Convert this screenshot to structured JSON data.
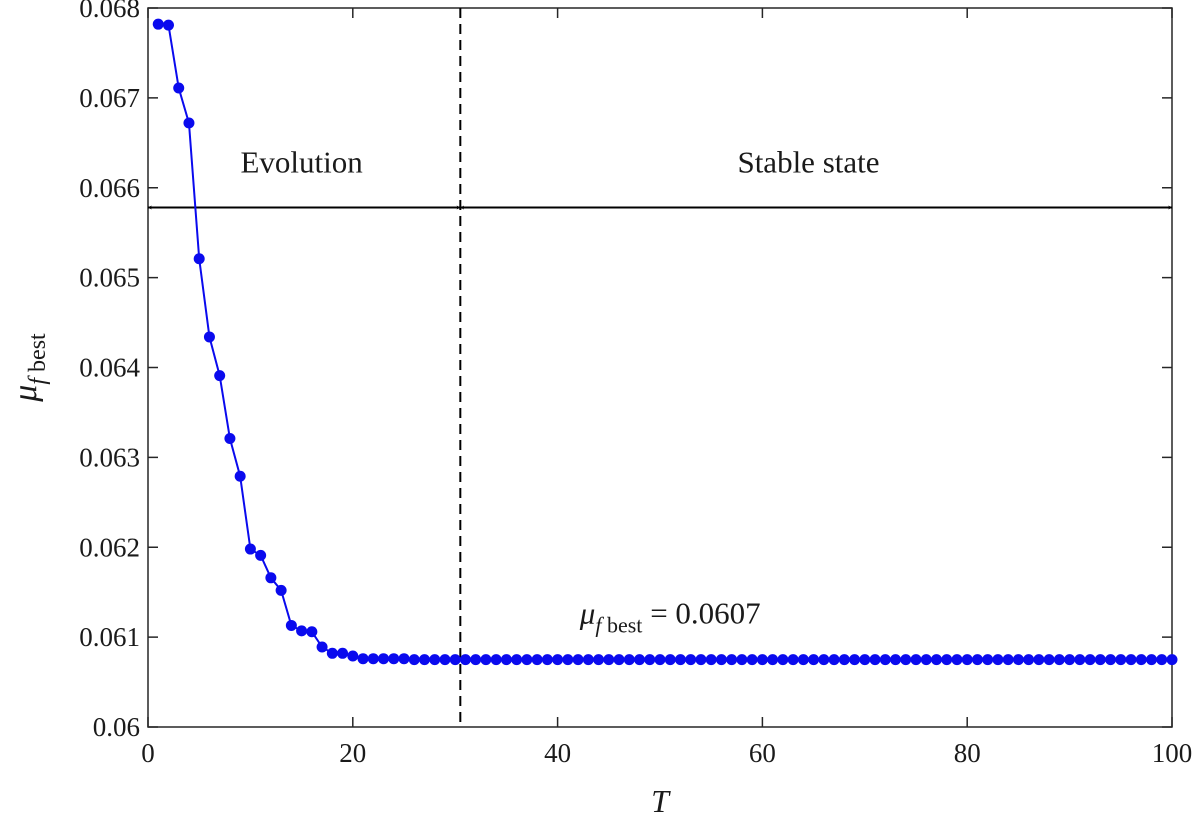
{
  "chart_data": {
    "type": "line",
    "title": "",
    "xlabel": "T",
    "ylabel": {
      "main": "μ",
      "sub_italic": "f",
      "sub": " best"
    },
    "xlim": [
      0,
      100
    ],
    "ylim": [
      0.06,
      0.068
    ],
    "xticks": [
      0,
      20,
      40,
      60,
      80,
      100
    ],
    "xtick_labels": [
      "0",
      "20",
      "40",
      "60",
      "80",
      "100"
    ],
    "yticks": [
      0.06,
      0.061,
      0.062,
      0.063,
      0.064,
      0.065,
      0.066,
      0.067,
      0.068
    ],
    "ytick_labels": [
      "0.06",
      "0.061",
      "0.062",
      "0.063",
      "0.064",
      "0.065",
      "0.066",
      "0.067",
      "0.068"
    ],
    "grid": false,
    "colors": {
      "series": "#0a0aee",
      "annotation": "#000000"
    },
    "series": [
      {
        "x_start": 1,
        "x_step": 1,
        "values": [
          0.06782,
          0.06781,
          0.06711,
          0.06672,
          0.06521,
          0.06434,
          0.06391,
          0.06321,
          0.06279,
          0.06198,
          0.06191,
          0.06166,
          0.06152,
          0.06113,
          0.06107,
          0.06106,
          0.06089,
          0.06082,
          0.06082,
          0.06079,
          0.06076,
          0.06076,
          0.06076,
          0.06076,
          0.06076,
          0.06075,
          0.06075,
          0.06075,
          0.06075,
          0.06075,
          0.06075,
          0.06075,
          0.06075,
          0.06075,
          0.06075,
          0.06075,
          0.06075,
          0.06075,
          0.06075,
          0.06075,
          0.06075,
          0.06075,
          0.06075,
          0.06075,
          0.06075,
          0.06075,
          0.06075,
          0.06075,
          0.06075,
          0.06075,
          0.06075,
          0.06075,
          0.06075,
          0.06075,
          0.06075,
          0.06075,
          0.06075,
          0.06075,
          0.06075,
          0.06075,
          0.06075,
          0.06075,
          0.06075,
          0.06075,
          0.06075,
          0.06075,
          0.06075,
          0.06075,
          0.06075,
          0.06075,
          0.06075,
          0.06075,
          0.06075,
          0.06075,
          0.06075,
          0.06075,
          0.06075,
          0.06075,
          0.06075,
          0.06075,
          0.06075,
          0.06075,
          0.06075,
          0.06075,
          0.06075,
          0.06075,
          0.06075,
          0.06075,
          0.06075,
          0.06075,
          0.06075,
          0.06075,
          0.06075,
          0.06075,
          0.06075,
          0.06075,
          0.06075,
          0.06075,
          0.06075,
          0.06075
        ]
      }
    ],
    "annotations": {
      "divider_x": 30.5,
      "arrow_y": 0.06578,
      "evolution": {
        "label": "Evolution",
        "x_from": 0,
        "x_to": 30.5,
        "label_x": 15,
        "label_y": 0.06617
      },
      "stable": {
        "label": "Stable state",
        "x_from": 30.5,
        "x_to": 100,
        "label_x": 64.5,
        "label_y": 0.06617
      },
      "result": {
        "symbol": "μ",
        "sub_italic": "f",
        "sub": " best",
        "value_text": " = 0.0607",
        "x": 51,
        "y": 0.06115
      }
    }
  }
}
